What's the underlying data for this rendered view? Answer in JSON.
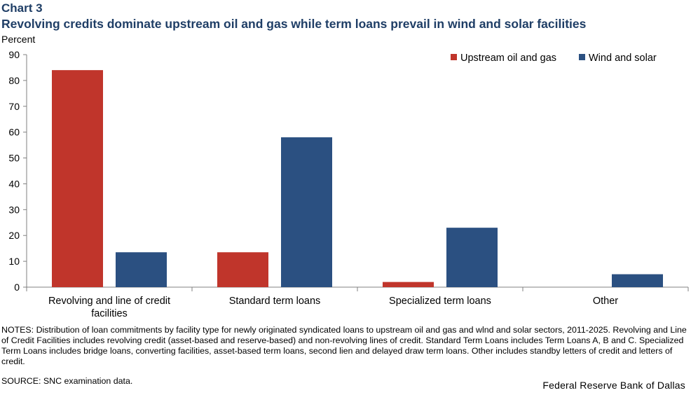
{
  "header": {
    "chart_label": "Chart 3",
    "title": "Revolving credits dominate upstream oil and gas while term loans prevail in wind and solar facilities"
  },
  "chart_data": {
    "type": "bar",
    "ylabel": "Percent",
    "ylim": [
      0,
      90
    ],
    "yticks": [
      0,
      10,
      20,
      30,
      40,
      50,
      60,
      70,
      80,
      90
    ],
    "categories": [
      "Revolving and line of credit facilities",
      "Standard term loans",
      "Specialized term loans",
      "Other"
    ],
    "category_lines": [
      [
        "Revolving and line of credit",
        "facilities"
      ],
      [
        "Standard term loans"
      ],
      [
        "Specialized term loans"
      ],
      [
        "Other"
      ]
    ],
    "series": [
      {
        "name": "Upstream oil and gas",
        "color": "#c0352b",
        "values": [
          84,
          13.5,
          2,
          0
        ]
      },
      {
        "name": "Wind and solar",
        "color": "#2b5081",
        "values": [
          13.5,
          58,
          23,
          5
        ]
      }
    ],
    "legend_position": "top-right",
    "grid": false
  },
  "footer": {
    "notes": "NOTES: Distribution of loan commitments by facility type for newly originated syndicated loans to upstream oil and gas and wlnd and solar sectors, 2011-2025. Revolving and Line of Credit Facilities includes revolving credit (asset-based and reserve-based) and non-revolving lines of credit. Standard Term Loans includes Term Loans A, B and C. Specialized Term Loans includes bridge loans, converting facilities, asset-based term loans, second lien and delayed draw term loans. Other includes standby letters of credit and letters of credit.",
    "source": "SOURCE: SNC examination data.",
    "credit": "Federal Reserve Bank of Dallas"
  }
}
